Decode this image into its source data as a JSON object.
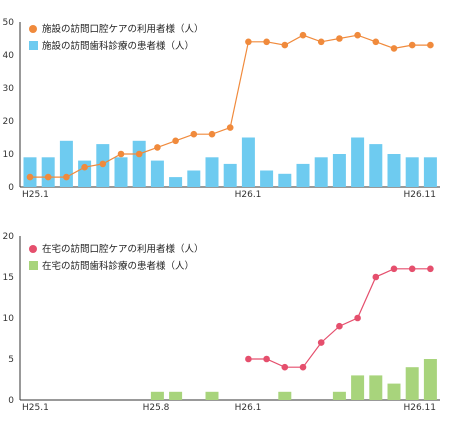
{
  "chart_data": [
    {
      "type": "bar",
      "x_tick_labels": [
        "H25.1",
        "H26.1",
        "H26.11"
      ],
      "y_ticks": [
        "0",
        "10",
        "20",
        "30",
        "40",
        "50"
      ],
      "ylim": [
        0,
        50
      ],
      "grid": false,
      "legend_position": "top-left",
      "series": [
        {
          "name": "施設の訪問口腔ケアの利用者様（人）",
          "kind": "line",
          "color": "#f08a3c",
          "values": [
            3,
            3,
            3,
            6,
            7,
            10,
            10,
            12,
            14,
            16,
            16,
            18,
            44,
            44,
            43,
            46,
            44,
            45,
            46,
            44,
            42,
            43,
            43
          ]
        },
        {
          "name": "施設の訪問歯科診療の患者様（人）",
          "kind": "bar",
          "color": "#6ecbf0",
          "values": [
            9,
            9,
            14,
            8,
            13,
            9,
            14,
            8,
            3,
            5,
            9,
            7,
            15,
            5,
            4,
            7,
            9,
            10,
            15,
            13,
            10,
            9,
            9
          ]
        }
      ]
    },
    {
      "type": "bar",
      "x_tick_labels": [
        "H25.1",
        "H25.8",
        "H26.1",
        "H26.11"
      ],
      "y_ticks": [
        "0",
        "5",
        "10",
        "15",
        "20"
      ],
      "ylim": [
        0,
        20
      ],
      "grid": false,
      "legend_position": "top-left",
      "series": [
        {
          "name": "在宅の訪問口腔ケアの利用者様（人）",
          "kind": "line",
          "color": "#e54f6d",
          "values": [
            null,
            null,
            null,
            null,
            null,
            null,
            null,
            null,
            null,
            null,
            null,
            null,
            5,
            5,
            4,
            4,
            7,
            9,
            10,
            15,
            16,
            16,
            16
          ]
        },
        {
          "name": "在宅の訪問歯科診療の患者様（人）",
          "kind": "bar",
          "color": "#a8d47c",
          "values": [
            0,
            0,
            0,
            0,
            0,
            0,
            0,
            1,
            1,
            0,
            1,
            0,
            0,
            0,
            1,
            0,
            0,
            1,
            3,
            3,
            2,
            4,
            5
          ]
        }
      ]
    }
  ]
}
